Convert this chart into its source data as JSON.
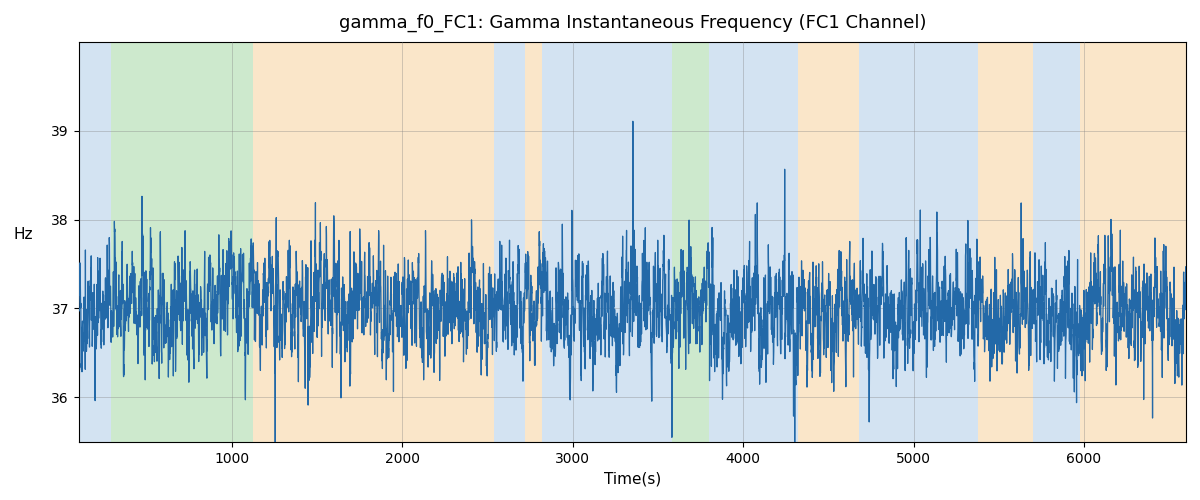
{
  "title": "gamma_f0_FC1: Gamma Instantaneous Frequency (FC1 Channel)",
  "xlabel": "Time(s)",
  "ylabel": "Hz",
  "xlim": [
    100,
    6600
  ],
  "ylim": [
    35.5,
    40.0
  ],
  "yticks": [
    36,
    37,
    38,
    39
  ],
  "xticks": [
    1000,
    2000,
    3000,
    4000,
    5000,
    6000
  ],
  "line_color": "#2369a8",
  "line_width": 0.9,
  "bg_color": "white",
  "grid_color": "gray",
  "grid_alpha": 0.5,
  "grid_lw": 0.5,
  "mean_freq": 37.0,
  "seed": 42,
  "n_points": 6500,
  "x_start": 100,
  "x_end": 6600,
  "bands": [
    {
      "start": 100,
      "end": 290,
      "color": "#b0cce8",
      "alpha": 0.55
    },
    {
      "start": 290,
      "end": 1120,
      "color": "#90d090",
      "alpha": 0.45
    },
    {
      "start": 1120,
      "end": 2540,
      "color": "#f5c888",
      "alpha": 0.45
    },
    {
      "start": 2540,
      "end": 2720,
      "color": "#b0cce8",
      "alpha": 0.55
    },
    {
      "start": 2720,
      "end": 2820,
      "color": "#f5c888",
      "alpha": 0.45
    },
    {
      "start": 2820,
      "end": 3580,
      "color": "#b0cce8",
      "alpha": 0.55
    },
    {
      "start": 3580,
      "end": 3800,
      "color": "#90d090",
      "alpha": 0.45
    },
    {
      "start": 3800,
      "end": 4320,
      "color": "#b0cce8",
      "alpha": 0.55
    },
    {
      "start": 4320,
      "end": 4680,
      "color": "#f5c888",
      "alpha": 0.45
    },
    {
      "start": 4680,
      "end": 5380,
      "color": "#b0cce8",
      "alpha": 0.55
    },
    {
      "start": 5380,
      "end": 5700,
      "color": "#f5c888",
      "alpha": 0.45
    },
    {
      "start": 5700,
      "end": 5980,
      "color": "#b0cce8",
      "alpha": 0.55
    },
    {
      "start": 5980,
      "end": 6600,
      "color": "#f5c888",
      "alpha": 0.45
    }
  ]
}
